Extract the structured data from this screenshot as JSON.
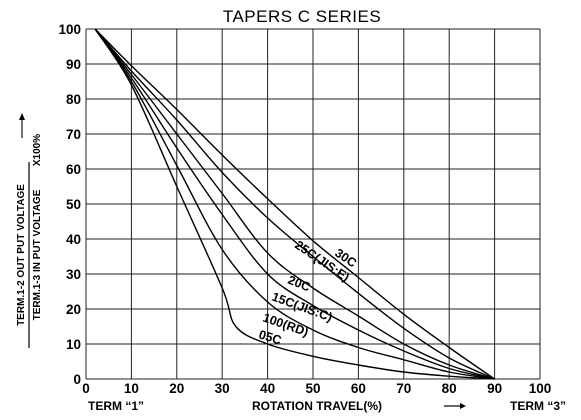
{
  "chart_data": {
    "type": "line",
    "title": "TAPERS C SERIES",
    "xlabel": "ROTATION TRAVEL(%)",
    "ylabel_line1": "TERM.1-2 OUT PUT VOLTAGE",
    "ylabel_line2": "TERM.1-3 IN PUT VOLTAGE",
    "ylabel_multiplier": "X100%",
    "term_left": "TERM “1”",
    "term_right": "TERM “3”",
    "xlim": [
      0,
      100
    ],
    "ylim": [
      0,
      100
    ],
    "x_ticks": [
      0,
      10,
      20,
      30,
      40,
      50,
      60,
      70,
      80,
      90,
      100
    ],
    "y_ticks": [
      0,
      10,
      20,
      30,
      40,
      50,
      60,
      70,
      80,
      90,
      100
    ],
    "grid": true,
    "series": [
      {
        "name": "30C",
        "x": [
          2,
          10,
          20,
          30,
          40,
          50,
          60,
          70,
          80,
          90
        ],
        "y": [
          100,
          89.5,
          77,
          64,
          51.5,
          39.5,
          29,
          18.5,
          9,
          0
        ]
      },
      {
        "name": "25C(JIS:E)",
        "x": [
          2,
          10,
          20,
          30,
          40,
          50,
          60,
          70,
          80,
          90
        ],
        "y": [
          100,
          88,
          74,
          59,
          46,
          35,
          24.5,
          14.5,
          6,
          0
        ]
      },
      {
        "name": "20C",
        "x": [
          2,
          10,
          20,
          30,
          40,
          50,
          60,
          70,
          80,
          90
        ],
        "y": [
          100,
          87,
          70,
          53,
          36,
          26,
          18,
          10,
          4,
          0
        ]
      },
      {
        "name": "15C(JIS:C)",
        "x": [
          2,
          10,
          20,
          30,
          40,
          50,
          60,
          70,
          80,
          90
        ],
        "y": [
          100,
          86,
          66,
          47,
          30,
          21,
          14,
          8,
          3,
          0
        ]
      },
      {
        "name": "100(RD)",
        "x": [
          2,
          10,
          20,
          30,
          40,
          50,
          60,
          70,
          80,
          90
        ],
        "y": [
          100,
          85,
          61,
          37,
          22,
          14,
          9,
          5.5,
          2,
          0
        ]
      },
      {
        "name": "05C",
        "x": [
          2,
          10,
          20,
          30,
          33,
          40,
          50,
          60,
          70,
          80,
          90
        ],
        "y": [
          100,
          84,
          55,
          26,
          15,
          10,
          6.5,
          4,
          2,
          0.8,
          0
        ]
      }
    ]
  }
}
